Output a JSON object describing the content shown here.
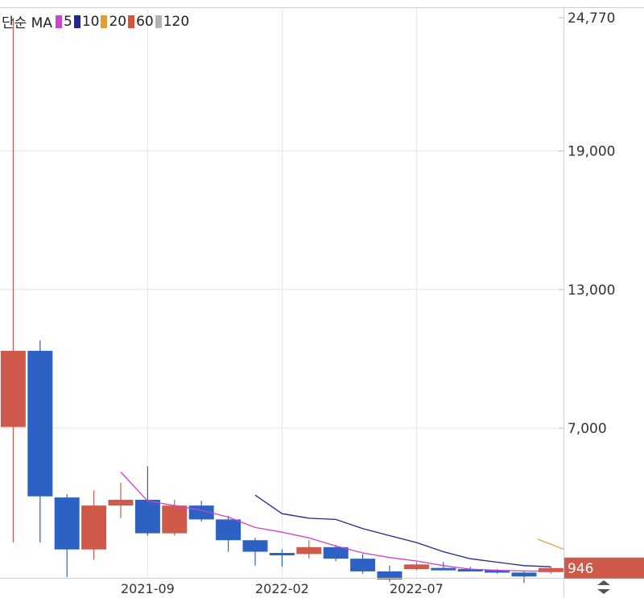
{
  "legend": {
    "title": "단순 MA",
    "items": [
      {
        "label": "5",
        "color": "#cc44cc"
      },
      {
        "label": "10",
        "color": "#1f2a8a"
      },
      {
        "label": "20",
        "color": "#e0a030"
      },
      {
        "label": "60",
        "color": "#d9533c"
      },
      {
        "label": "120",
        "color": "#b3b3b3"
      }
    ]
  },
  "colors": {
    "up": "#cf5a4b",
    "down": "#2d62c4",
    "grid": "#e6e6e6",
    "last_bg": "#cf5a4b"
  },
  "last_price_label": "946",
  "chart_data": {
    "type": "candlestick",
    "title": "",
    "ylim": [
      0,
      24770
    ],
    "y_ticks": [
      "24,770",
      "19,000",
      "13,000",
      "7,000"
    ],
    "x_ticks": [
      "2021-09",
      "2022-02",
      "2022-07"
    ],
    "candles": [
      {
        "open": 7050,
        "close": 10350,
        "high": 24770,
        "low": 2050
      },
      {
        "open": 10350,
        "close": 4050,
        "high": 10800,
        "low": 2050
      },
      {
        "open": 4000,
        "close": 1750,
        "high": 4150,
        "low": 550
      },
      {
        "open": 1750,
        "close": 3650,
        "high": 4300,
        "low": 1300
      },
      {
        "open": 3650,
        "close": 3900,
        "high": 4650,
        "low": 3100
      },
      {
        "open": 3900,
        "close": 2450,
        "high": 5350,
        "low": 2350
      },
      {
        "open": 2450,
        "close": 3650,
        "high": 3900,
        "low": 2350
      },
      {
        "open": 3650,
        "close": 3050,
        "high": 3850,
        "low": 2950
      },
      {
        "open": 3050,
        "close": 2150,
        "high": 3200,
        "low": 1650
      },
      {
        "open": 2150,
        "close": 1650,
        "high": 2250,
        "low": 1050
      },
      {
        "open": 1600,
        "close": 1550,
        "high": 1750,
        "low": 1000
      },
      {
        "open": 1550,
        "close": 1850,
        "high": 2150,
        "low": 1350
      },
      {
        "open": 1850,
        "close": 1350,
        "high": 1950,
        "low": 1250
      },
      {
        "open": 1350,
        "close": 800,
        "high": 1550,
        "low": 700
      },
      {
        "open": 800,
        "close": 450,
        "high": 1050,
        "low": 350
      },
      {
        "open": 900,
        "close": 1100,
        "high": 1200,
        "low": 850
      },
      {
        "open": 950,
        "close": 900,
        "high": 1200,
        "low": 850
      },
      {
        "open": 900,
        "close": 850,
        "high": 1000,
        "low": 800
      },
      {
        "open": 850,
        "close": 750,
        "high": 900,
        "low": 700
      },
      {
        "open": 750,
        "close": 580,
        "high": 820,
        "low": 300
      },
      {
        "open": 770,
        "close": 946,
        "high": 1000,
        "low": 700
      }
    ],
    "series": [
      {
        "label": "5",
        "color": "#cc44cc",
        "points": [
          [
            4,
            5100
          ],
          [
            5,
            3850
          ],
          [
            6,
            3650
          ],
          [
            7,
            3450
          ],
          [
            8,
            3150
          ],
          [
            9,
            2700
          ],
          [
            10,
            2500
          ],
          [
            11,
            2250
          ],
          [
            12,
            1900
          ],
          [
            13,
            1600
          ],
          [
            14,
            1400
          ],
          [
            15,
            1250
          ],
          [
            16,
            1050
          ],
          [
            17,
            900
          ],
          [
            18,
            850
          ],
          [
            19,
            820
          ],
          [
            20,
            800
          ]
        ]
      },
      {
        "label": "10",
        "color": "#1f2a8a",
        "points": [
          [
            9,
            4100
          ],
          [
            10,
            3300
          ],
          [
            11,
            3100
          ],
          [
            12,
            3050
          ],
          [
            13,
            2650
          ],
          [
            14,
            2350
          ],
          [
            15,
            2050
          ],
          [
            16,
            1650
          ],
          [
            17,
            1350
          ],
          [
            18,
            1200
          ],
          [
            19,
            1050
          ],
          [
            20,
            1000
          ]
        ]
      },
      {
        "label": "20",
        "color": "#e0a030",
        "points": [
          [
            19.5,
            2200
          ],
          [
            20.5,
            1750
          ]
        ]
      }
    ]
  }
}
